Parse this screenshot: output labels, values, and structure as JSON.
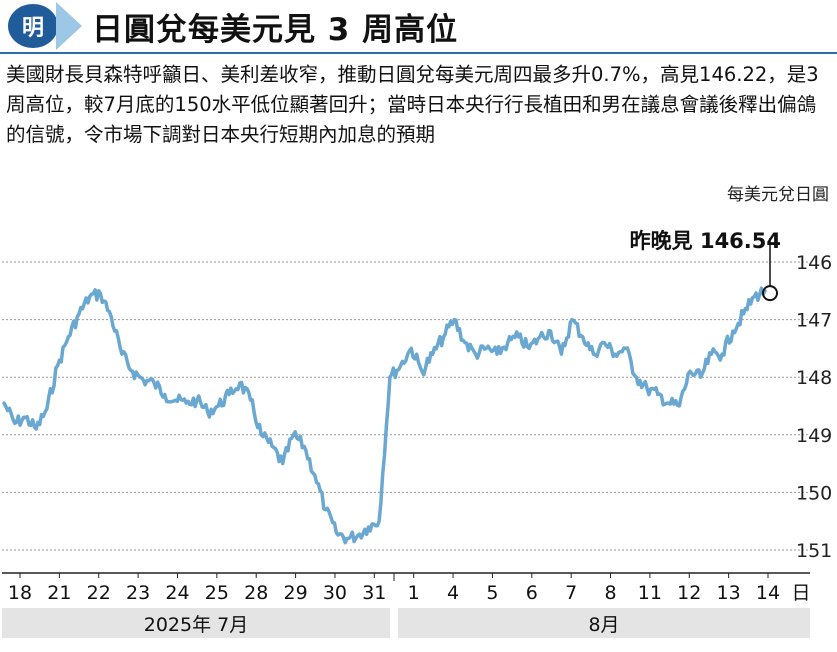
{
  "header": {
    "logo_text": "明",
    "title": "日圓兌每美元見 3 周高位"
  },
  "body_text": "美國財長貝森特呼籲日、美利差收窄，推動日圓兌每美元周四最多升0.7%，高見146.22，是3周高位，較7月底的150水平低位顯著回升；當時日本央行行長植田和男在議息會議後釋出偏鴿的信號，令市場下調對日本央行短期內加息的預期",
  "chart_data": {
    "type": "line",
    "unit_label": "每美元兌日圓",
    "yaxis_inverted": true,
    "ylim": [
      145.6,
      151.1
    ],
    "yticks": [
      146,
      147,
      148,
      149,
      150,
      151
    ],
    "xticks": [
      "18",
      "21",
      "22",
      "23",
      "24",
      "25",
      "28",
      "29",
      "30",
      "31",
      "1",
      "4",
      "5",
      "6",
      "7",
      "8",
      "11",
      "12",
      "13",
      "14"
    ],
    "x_unit": "日",
    "month_labels": [
      "2025年 7月",
      "8月"
    ],
    "annotation": {
      "text": "昨晚見 146.54",
      "value": 146.54
    },
    "color": "#6aa8d2",
    "series": [
      {
        "values": [
          148.45,
          148.8,
          148.7,
          148.9,
          148.55,
          147.8,
          147.3,
          146.9,
          146.6,
          146.55,
          146.95,
          147.6,
          147.9,
          148.05,
          148.1,
          148.3,
          148.4,
          148.45,
          148.4,
          148.6,
          148.5,
          148.3,
          148.1,
          148.4,
          149.0,
          149.2,
          149.5,
          149.0,
          149.2,
          149.7,
          150.3,
          150.7,
          150.8,
          150.75,
          150.6,
          150.5,
          148.0,
          147.8,
          147.5,
          147.9,
          147.6,
          147.3,
          147.0,
          147.4,
          147.6,
          147.5,
          147.6,
          147.4,
          147.3,
          147.5,
          147.3,
          147.2,
          147.6,
          147.0,
          147.3,
          147.6,
          147.4,
          147.6,
          147.5,
          148.0,
          148.2,
          148.3,
          148.45,
          148.5,
          147.9,
          148.0,
          147.6,
          147.6,
          147.2,
          146.9,
          146.6,
          146.5
        ]
      }
    ]
  }
}
